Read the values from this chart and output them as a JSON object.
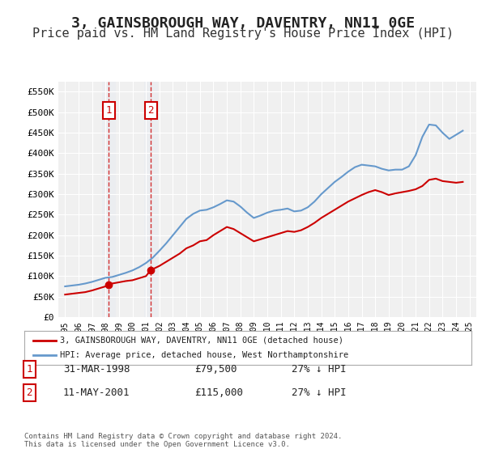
{
  "title": "3, GAINSBOROUGH WAY, DAVENTRY, NN11 0GE",
  "subtitle": "Price paid vs. HM Land Registry's House Price Index (HPI)",
  "title_fontsize": 13,
  "subtitle_fontsize": 11,
  "bg_color": "#ffffff",
  "plot_bg_color": "#f0f0f0",
  "grid_color": "#ffffff",
  "red_line_color": "#cc0000",
  "blue_line_color": "#6699cc",
  "transaction1": {
    "date_x": 1998.25,
    "price": 79500,
    "label": "1"
  },
  "transaction2": {
    "date_x": 2001.36,
    "price": 115000,
    "label": "2"
  },
  "legend_label_red": "3, GAINSBOROUGH WAY, DAVENTRY, NN11 0GE (detached house)",
  "legend_label_blue": "HPI: Average price, detached house, West Northamptonshire",
  "table_rows": [
    {
      "num": "1",
      "date": "31-MAR-1998",
      "price": "£79,500",
      "hpi": "27% ↓ HPI"
    },
    {
      "num": "2",
      "date": "11-MAY-2001",
      "price": "£115,000",
      "hpi": "27% ↓ HPI"
    }
  ],
  "footer": "Contains HM Land Registry data © Crown copyright and database right 2024.\nThis data is licensed under the Open Government Licence v3.0.",
  "ylim": [
    0,
    575000
  ],
  "yticks": [
    0,
    50000,
    100000,
    150000,
    200000,
    250000,
    300000,
    350000,
    400000,
    450000,
    500000,
    550000
  ],
  "ytick_labels": [
    "£0",
    "£50K",
    "£100K",
    "£150K",
    "£200K",
    "£250K",
    "£300K",
    "£350K",
    "£400K",
    "£450K",
    "£500K",
    "£550K"
  ],
  "xlim": [
    1994.5,
    2025.5
  ],
  "xticks": [
    1995,
    1996,
    1997,
    1998,
    1999,
    2000,
    2001,
    2002,
    2003,
    2004,
    2005,
    2006,
    2007,
    2008,
    2009,
    2010,
    2011,
    2012,
    2013,
    2014,
    2015,
    2016,
    2017,
    2018,
    2019,
    2020,
    2021,
    2022,
    2023,
    2024,
    2025
  ],
  "red_x": [
    1995.0,
    1995.5,
    1996.0,
    1996.5,
    1997.0,
    1997.5,
    1998.0,
    1998.25,
    1998.5,
    1999.0,
    1999.5,
    2000.0,
    2000.5,
    2001.0,
    2001.36,
    2001.5,
    2002.0,
    2002.5,
    2003.0,
    2003.5,
    2004.0,
    2004.5,
    2005.0,
    2005.5,
    2006.0,
    2006.5,
    2007.0,
    2007.5,
    2008.0,
    2008.5,
    2009.0,
    2009.5,
    2010.0,
    2010.5,
    2011.0,
    2011.5,
    2012.0,
    2012.5,
    2013.0,
    2013.5,
    2014.0,
    2014.5,
    2015.0,
    2015.5,
    2016.0,
    2016.5,
    2017.0,
    2017.5,
    2018.0,
    2018.5,
    2019.0,
    2019.5,
    2020.0,
    2020.5,
    2021.0,
    2021.5,
    2022.0,
    2022.5,
    2023.0,
    2023.5,
    2024.0,
    2024.5
  ],
  "red_y": [
    55000,
    57000,
    59000,
    61000,
    65000,
    70000,
    75000,
    79500,
    82000,
    85000,
    88000,
    90000,
    95000,
    100000,
    115000,
    117000,
    125000,
    135000,
    145000,
    155000,
    168000,
    175000,
    185000,
    188000,
    200000,
    210000,
    220000,
    215000,
    205000,
    195000,
    185000,
    190000,
    195000,
    200000,
    205000,
    210000,
    208000,
    212000,
    220000,
    230000,
    242000,
    252000,
    262000,
    272000,
    282000,
    290000,
    298000,
    305000,
    310000,
    305000,
    298000,
    302000,
    305000,
    308000,
    312000,
    320000,
    335000,
    338000,
    332000,
    330000,
    328000,
    330000
  ],
  "blue_x": [
    1995.0,
    1995.5,
    1996.0,
    1996.5,
    1997.0,
    1997.5,
    1998.0,
    1998.5,
    1999.0,
    1999.5,
    2000.0,
    2000.5,
    2001.0,
    2001.5,
    2002.0,
    2002.5,
    2003.0,
    2003.5,
    2004.0,
    2004.5,
    2005.0,
    2005.5,
    2006.0,
    2006.5,
    2007.0,
    2007.5,
    2008.0,
    2008.5,
    2009.0,
    2009.5,
    2010.0,
    2010.5,
    2011.0,
    2011.5,
    2012.0,
    2012.5,
    2013.0,
    2013.5,
    2014.0,
    2014.5,
    2015.0,
    2015.5,
    2016.0,
    2016.5,
    2017.0,
    2017.5,
    2018.0,
    2018.5,
    2019.0,
    2019.5,
    2020.0,
    2020.5,
    2021.0,
    2021.5,
    2022.0,
    2022.5,
    2023.0,
    2023.5,
    2024.0,
    2024.5
  ],
  "blue_y": [
    75000,
    77000,
    79000,
    82000,
    86000,
    91000,
    96000,
    98000,
    103000,
    108000,
    114000,
    122000,
    132000,
    145000,
    162000,
    180000,
    200000,
    220000,
    240000,
    252000,
    260000,
    262000,
    268000,
    276000,
    285000,
    282000,
    270000,
    255000,
    242000,
    248000,
    255000,
    260000,
    262000,
    265000,
    258000,
    260000,
    268000,
    282000,
    300000,
    315000,
    330000,
    342000,
    355000,
    366000,
    372000,
    370000,
    368000,
    362000,
    358000,
    360000,
    360000,
    368000,
    395000,
    440000,
    470000,
    468000,
    450000,
    435000,
    445000,
    455000
  ],
  "shade_color1": "#dde8f0",
  "shade_color2": "#dde8f0"
}
